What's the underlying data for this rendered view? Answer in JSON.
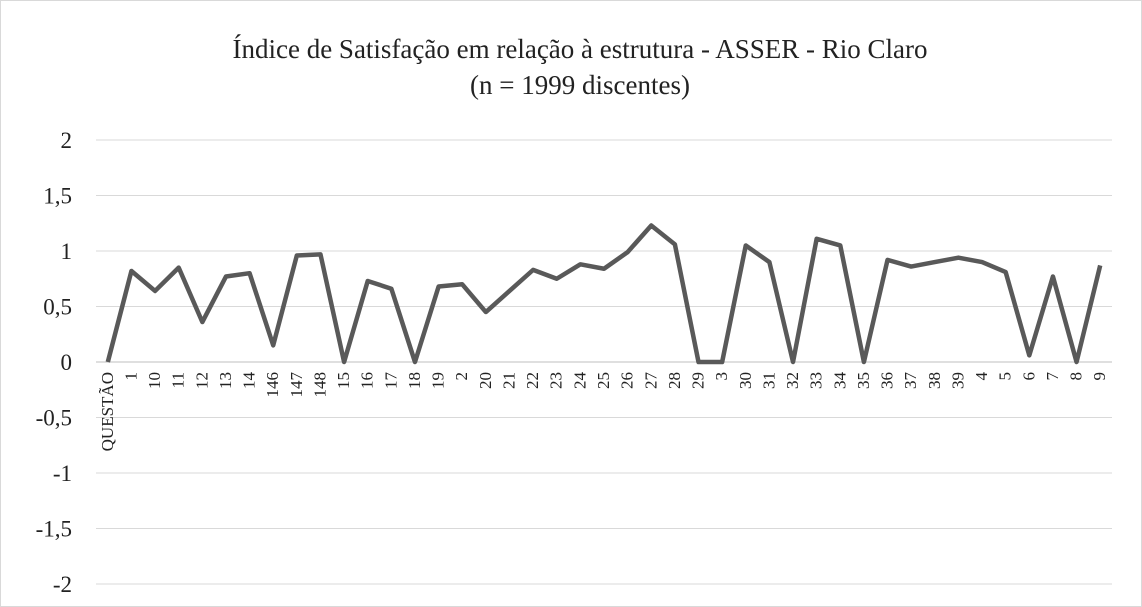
{
  "chart_data": {
    "type": "line",
    "title": "Índice de Satisfação em relação à estrutura - ASSER - Rio Claro",
    "subtitle": "(n = 1999 discentes)",
    "categories": [
      "QUESTÃO",
      "1",
      "10",
      "11",
      "12",
      "13",
      "14",
      "146",
      "147",
      "148",
      "15",
      "16",
      "17",
      "18",
      "19",
      "2",
      "20",
      "21",
      "22",
      "23",
      "24",
      "25",
      "26",
      "27",
      "28",
      "29",
      "3",
      "30",
      "31",
      "32",
      "33",
      "34",
      "35",
      "36",
      "37",
      "38",
      "39",
      "4",
      "5",
      "6",
      "7",
      "8",
      "9"
    ],
    "series": [
      {
        "color": "#595959",
        "values": [
          0,
          0.82,
          0.64,
          0.85,
          0.36,
          0.77,
          0.8,
          0.15,
          0.96,
          0.97,
          0,
          0.73,
          0.66,
          0,
          0.68,
          0.7,
          0.45,
          0.64,
          0.83,
          0.75,
          0.88,
          0.84,
          0.99,
          1.23,
          1.06,
          0,
          0,
          1.05,
          0.9,
          0,
          1.11,
          1.05,
          0,
          0.92,
          0.86,
          0.9,
          0.94,
          0.9,
          0.81,
          0.06,
          0.77,
          0,
          0.87
        ]
      }
    ],
    "ylim": [
      -2,
      2
    ],
    "yticks": [
      -2,
      {
        "value": -1.5,
        "label": "-1,5"
      },
      -1,
      {
        "value": -0.5,
        "label": "-0,5"
      },
      0,
      {
        "value": 0.5,
        "label": "0,5"
      },
      1,
      {
        "value": 1.5,
        "label": "1,5"
      },
      2
    ],
    "grid": true
  }
}
